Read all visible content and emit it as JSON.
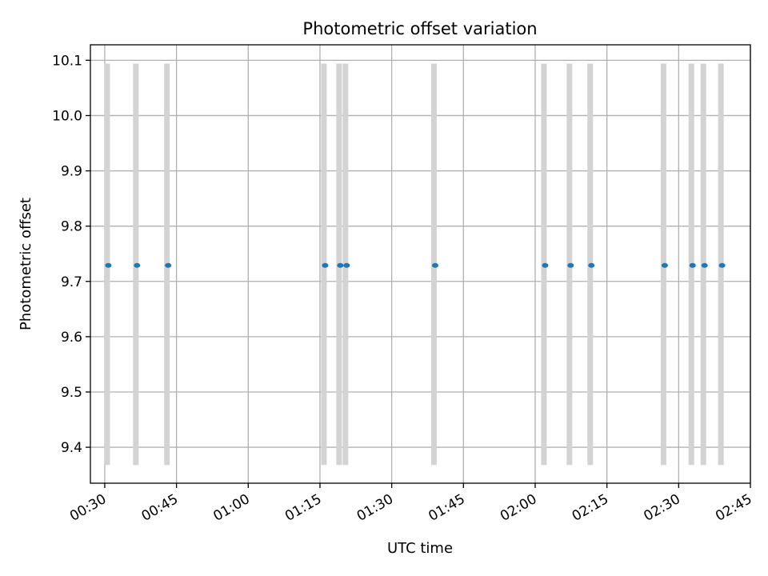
{
  "chart_data": {
    "type": "scatter",
    "title": "Photometric offset variation",
    "xlabel": "UTC time",
    "ylabel": "Photometric offset",
    "x_ticks": [
      "00:30",
      "00:45",
      "01:00",
      "01:15",
      "01:30",
      "01:45",
      "02:00",
      "02:15",
      "02:30",
      "02:45"
    ],
    "y_ticks": [
      "9.4",
      "9.5",
      "9.6",
      "9.7",
      "9.8",
      "9.9",
      "10.0",
      "10.1"
    ],
    "xlim": [
      "00:27",
      "02:45"
    ],
    "ylim": [
      9.335,
      10.128
    ],
    "grid": true,
    "band_range": [
      9.368,
      10.094
    ],
    "colors": {
      "points": "#1f77b4",
      "bands": "#d3d3d3",
      "grid": "#b0b0b0"
    },
    "x": [
      "00:30:30",
      "00:36:30",
      "00:43:00",
      "01:15:50",
      "01:19:00",
      "01:20:20",
      "01:38:50",
      "02:01:50",
      "02:07:10",
      "02:11:30",
      "02:26:50",
      "02:32:40",
      "02:35:10",
      "02:38:50"
    ],
    "y": [
      9.729,
      9.729,
      9.729,
      9.729,
      9.729,
      9.729,
      9.729,
      9.729,
      9.729,
      9.729,
      9.729,
      9.729,
      9.729,
      9.729
    ]
  }
}
